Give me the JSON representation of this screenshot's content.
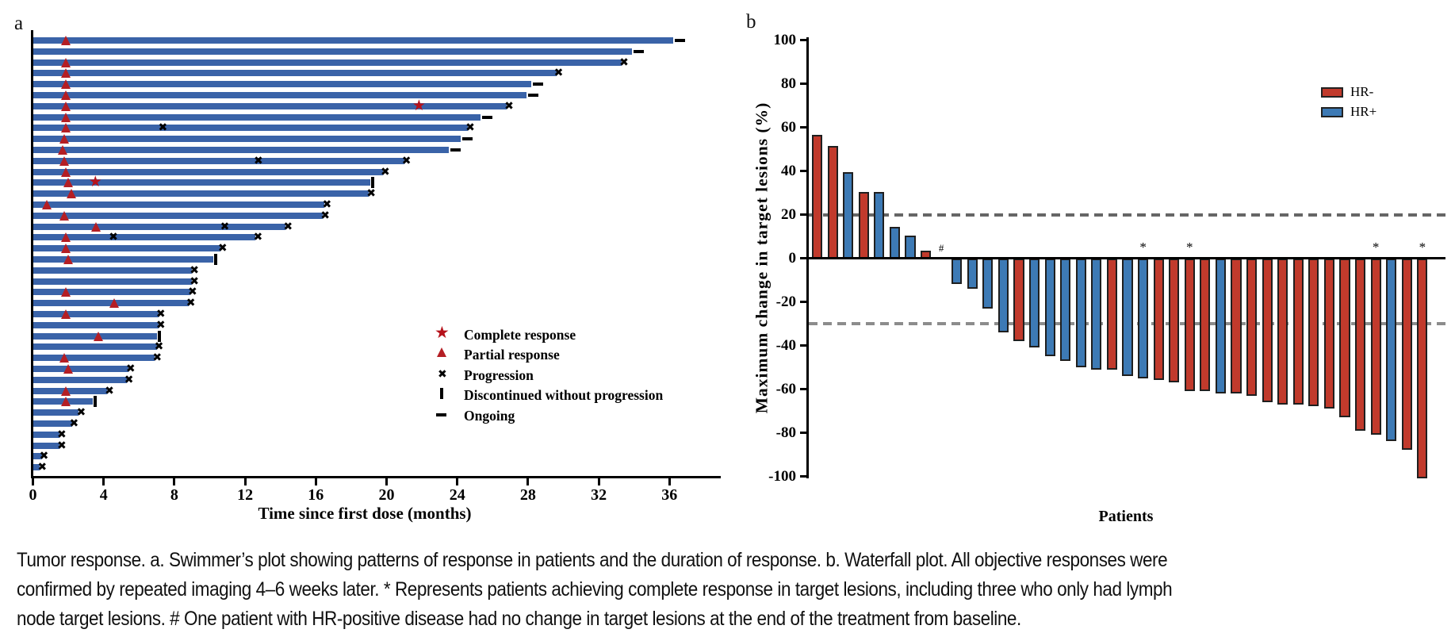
{
  "colors": {
    "swimmer_bar": "#3a63a8",
    "marker_red": "#b41e24",
    "hr_neg": "#c13a2c",
    "hr_pos": "#3d7ab5",
    "bar_border": "#1f1f1f",
    "ref_line_upper": "#666666",
    "ref_line_lower": "#8c8c8c"
  },
  "caption": {
    "lines": [
      "Tumor response. a. Swimmer’s plot showing patterns of response in patients and the duration of response. b. Waterfall plot. All objective responses were",
      "confirmed by repeated imaging 4–6 weeks later. * Represents patients achieving complete response in target lesions, including three who only had lymph",
      "node target lesions. # One patient with HR-positive disease had no change in target lesions at the end of the treatment from baseline."
    ]
  },
  "chart_data": [
    {
      "type": "swimmer",
      "panel_label": "a",
      "xlabel": "Time since first dose (months)",
      "x_ticks": [
        0,
        4,
        8,
        12,
        16,
        20,
        24,
        28,
        32,
        36
      ],
      "xlim": [
        0,
        38.8
      ],
      "legend": [
        {
          "symbol": "star",
          "label": "Complete response"
        },
        {
          "symbol": "triangle",
          "label": "Partial response"
        },
        {
          "symbol": "x",
          "label": "Progression"
        },
        {
          "symbol": "vbar",
          "label": "Discontinued without progression"
        },
        {
          "symbol": "dash",
          "label": "Ongoing"
        }
      ],
      "patients": [
        {
          "d": 36.2,
          "pr": [
            1.9
          ],
          "cr": [],
          "xm": [],
          "end": "ongoing"
        },
        {
          "d": 33.9,
          "pr": [],
          "cr": [],
          "xm": [],
          "end": "ongoing"
        },
        {
          "d": 33.3,
          "pr": [
            1.9
          ],
          "cr": [],
          "xm": [],
          "end": "progression"
        },
        {
          "d": 29.6,
          "pr": [
            1.9
          ],
          "cr": [],
          "xm": [],
          "end": "progression"
        },
        {
          "d": 28.2,
          "pr": [
            1.9
          ],
          "cr": [],
          "xm": [],
          "end": "ongoing"
        },
        {
          "d": 27.9,
          "pr": [
            1.9
          ],
          "cr": [],
          "xm": [],
          "end": "ongoing"
        },
        {
          "d": 26.8,
          "pr": [
            1.9
          ],
          "cr": [
            21.9
          ],
          "xm": [],
          "end": "progression"
        },
        {
          "d": 25.3,
          "pr": [
            1.9
          ],
          "cr": [],
          "xm": [],
          "end": "ongoing"
        },
        {
          "d": 24.6,
          "pr": [
            1.9
          ],
          "cr": [],
          "xm": [
            7.4
          ],
          "end": "progression"
        },
        {
          "d": 24.2,
          "pr": [
            1.8
          ],
          "cr": [],
          "xm": [],
          "end": "ongoing"
        },
        {
          "d": 23.5,
          "pr": [
            1.7
          ],
          "cr": [],
          "xm": [],
          "end": "ongoing"
        },
        {
          "d": 21.0,
          "pr": [
            1.8
          ],
          "cr": [],
          "xm": [
            12.8
          ],
          "end": "progression"
        },
        {
          "d": 19.8,
          "pr": [
            1.9
          ],
          "cr": [],
          "xm": [],
          "end": "progression"
        },
        {
          "d": 19.1,
          "pr": [
            2.0
          ],
          "cr": [
            3.6
          ],
          "xm": [],
          "end": "discontinued"
        },
        {
          "d": 19.0,
          "pr": [
            2.2
          ],
          "cr": [],
          "xm": [],
          "end": "progression"
        },
        {
          "d": 16.5,
          "pr": [
            0.8
          ],
          "cr": [],
          "xm": [],
          "end": "progression"
        },
        {
          "d": 16.4,
          "pr": [
            1.8
          ],
          "cr": [],
          "xm": [],
          "end": "progression"
        },
        {
          "d": 14.3,
          "pr": [
            3.6
          ],
          "cr": [],
          "xm": [
            10.9
          ],
          "end": "progression"
        },
        {
          "d": 12.6,
          "pr": [
            1.9
          ],
          "cr": [],
          "xm": [
            4.6
          ],
          "end": "progression"
        },
        {
          "d": 10.6,
          "pr": [
            1.9
          ],
          "cr": [],
          "xm": [],
          "end": "progression"
        },
        {
          "d": 10.2,
          "pr": [
            2.0
          ],
          "cr": [],
          "xm": [],
          "end": "discontinued"
        },
        {
          "d": 9.0,
          "pr": [],
          "cr": [],
          "xm": [],
          "end": "progression"
        },
        {
          "d": 9.0,
          "pr": [],
          "cr": [],
          "xm": [],
          "end": "progression"
        },
        {
          "d": 8.9,
          "pr": [
            1.9
          ],
          "cr": [],
          "xm": [],
          "end": "progression"
        },
        {
          "d": 8.8,
          "pr": [
            4.6
          ],
          "cr": [],
          "xm": [],
          "end": "progression"
        },
        {
          "d": 7.1,
          "pr": [
            1.9
          ],
          "cr": [],
          "xm": [],
          "end": "progression"
        },
        {
          "d": 7.1,
          "pr": [],
          "cr": [],
          "xm": [],
          "end": "progression"
        },
        {
          "d": 7.0,
          "pr": [
            3.7
          ],
          "cr": [],
          "xm": [],
          "end": "discontinued"
        },
        {
          "d": 7.0,
          "pr": [],
          "cr": [],
          "xm": [],
          "end": "progression"
        },
        {
          "d": 6.9,
          "pr": [
            1.8
          ],
          "cr": [],
          "xm": [],
          "end": "progression"
        },
        {
          "d": 5.4,
          "pr": [
            2.0
          ],
          "cr": [],
          "xm": [],
          "end": "progression"
        },
        {
          "d": 5.3,
          "pr": [],
          "cr": [],
          "xm": [],
          "end": "progression"
        },
        {
          "d": 4.2,
          "pr": [
            1.9
          ],
          "cr": [],
          "xm": [],
          "end": "progression"
        },
        {
          "d": 3.4,
          "pr": [
            1.9
          ],
          "cr": [],
          "xm": [],
          "end": "discontinued"
        },
        {
          "d": 2.6,
          "pr": [],
          "cr": [],
          "xm": [],
          "end": "progression"
        },
        {
          "d": 2.2,
          "pr": [],
          "cr": [],
          "xm": [],
          "end": "progression"
        },
        {
          "d": 1.5,
          "pr": [],
          "cr": [],
          "xm": [],
          "end": "progression"
        },
        {
          "d": 1.5,
          "pr": [],
          "cr": [],
          "xm": [],
          "end": "progression"
        },
        {
          "d": 0.5,
          "pr": [],
          "cr": [],
          "xm": [],
          "end": "progression"
        },
        {
          "d": 0.4,
          "pr": [],
          "cr": [],
          "xm": [],
          "end": "progression"
        }
      ]
    },
    {
      "type": "bar",
      "panel_label": "b",
      "ylabel": "Maximum change in target lesions (%)",
      "xlabel": "Patients",
      "ylim": [
        -100,
        100
      ],
      "y_ticks": [
        100,
        80,
        60,
        40,
        20,
        0,
        -20,
        -40,
        -60,
        -80,
        -100
      ],
      "reference_lines": [
        20,
        -30
      ],
      "legend": [
        {
          "name": "HR-",
          "color": "#c13a2c"
        },
        {
          "name": "HR+",
          "color": "#3d7ab5"
        }
      ],
      "bars": [
        {
          "v": 56,
          "g": "HR-",
          "note": ""
        },
        {
          "v": 51,
          "g": "HR-",
          "note": ""
        },
        {
          "v": 39,
          "g": "HR+",
          "note": ""
        },
        {
          "v": 30,
          "g": "HR-",
          "note": ""
        },
        {
          "v": 30,
          "g": "HR+",
          "note": ""
        },
        {
          "v": 14,
          "g": "HR+",
          "note": ""
        },
        {
          "v": 10,
          "g": "HR+",
          "note": ""
        },
        {
          "v": 3,
          "g": "HR-",
          "note": ""
        },
        {
          "v": 0,
          "g": "HR+",
          "note": "#"
        },
        {
          "v": -11,
          "g": "HR+",
          "note": ""
        },
        {
          "v": -13,
          "g": "HR+",
          "note": ""
        },
        {
          "v": -22,
          "g": "HR+",
          "note": ""
        },
        {
          "v": -33,
          "g": "HR+",
          "note": ""
        },
        {
          "v": -37,
          "g": "HR-",
          "note": ""
        },
        {
          "v": -40,
          "g": "HR+",
          "note": ""
        },
        {
          "v": -44,
          "g": "HR+",
          "note": ""
        },
        {
          "v": -46,
          "g": "HR+",
          "note": ""
        },
        {
          "v": -49,
          "g": "HR+",
          "note": ""
        },
        {
          "v": -50,
          "g": "HR+",
          "note": ""
        },
        {
          "v": -50,
          "g": "HR-",
          "note": ""
        },
        {
          "v": -53,
          "g": "HR+",
          "note": ""
        },
        {
          "v": -54,
          "g": "HR+",
          "note": "*"
        },
        {
          "v": -55,
          "g": "HR-",
          "note": ""
        },
        {
          "v": -56,
          "g": "HR-",
          "note": ""
        },
        {
          "v": -60,
          "g": "HR-",
          "note": "*"
        },
        {
          "v": -60,
          "g": "HR-",
          "note": ""
        },
        {
          "v": -61,
          "g": "HR+",
          "note": ""
        },
        {
          "v": -61,
          "g": "HR-",
          "note": ""
        },
        {
          "v": -62,
          "g": "HR-",
          "note": ""
        },
        {
          "v": -65,
          "g": "HR-",
          "note": ""
        },
        {
          "v": -66,
          "g": "HR-",
          "note": ""
        },
        {
          "v": -66,
          "g": "HR-",
          "note": ""
        },
        {
          "v": -67,
          "g": "HR-",
          "note": ""
        },
        {
          "v": -68,
          "g": "HR-",
          "note": ""
        },
        {
          "v": -72,
          "g": "HR-",
          "note": ""
        },
        {
          "v": -78,
          "g": "HR-",
          "note": ""
        },
        {
          "v": -80,
          "g": "HR-",
          "note": "*"
        },
        {
          "v": -83,
          "g": "HR+",
          "note": ""
        },
        {
          "v": -87,
          "g": "HR-",
          "note": ""
        },
        {
          "v": -100,
          "g": "HR-",
          "note": "*"
        }
      ]
    }
  ]
}
